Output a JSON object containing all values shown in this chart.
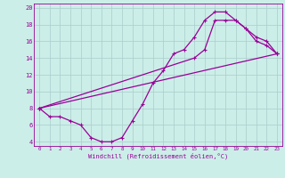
{
  "background_color": "#cceee8",
  "line_color": "#990099",
  "grid_color": "#aacccc",
  "xlabel": "Windchill (Refroidissement éolien,°C)",
  "xlim": [
    -0.5,
    23.5
  ],
  "ylim": [
    3.5,
    20.5
  ],
  "yticks": [
    4,
    6,
    8,
    10,
    12,
    14,
    16,
    18,
    20
  ],
  "xticks": [
    0,
    1,
    2,
    3,
    4,
    5,
    6,
    7,
    8,
    9,
    10,
    11,
    12,
    13,
    14,
    15,
    16,
    17,
    18,
    19,
    20,
    21,
    22,
    23
  ],
  "line1_x": [
    0,
    1,
    2,
    3,
    4,
    5,
    6,
    7,
    8,
    9,
    10,
    11,
    12,
    13,
    14,
    15,
    16,
    17,
    18,
    19,
    20,
    21,
    22,
    23
  ],
  "line1_y": [
    8,
    7,
    7,
    6.5,
    6,
    4.5,
    4,
    4,
    4.5,
    6.5,
    8.5,
    11,
    12.5,
    14.5,
    15,
    16.5,
    18.5,
    19.5,
    19.5,
    18.5,
    17.5,
    16,
    15.5,
    14.5
  ],
  "line2_x": [
    0,
    15,
    16,
    17,
    18,
    19,
    20,
    21,
    22,
    23
  ],
  "line2_y": [
    8,
    14,
    15,
    18.5,
    18.5,
    18.5,
    17.5,
    16.5,
    16,
    14.5
  ],
  "line3_x": [
    0,
    23
  ],
  "line3_y": [
    8,
    14.5
  ]
}
